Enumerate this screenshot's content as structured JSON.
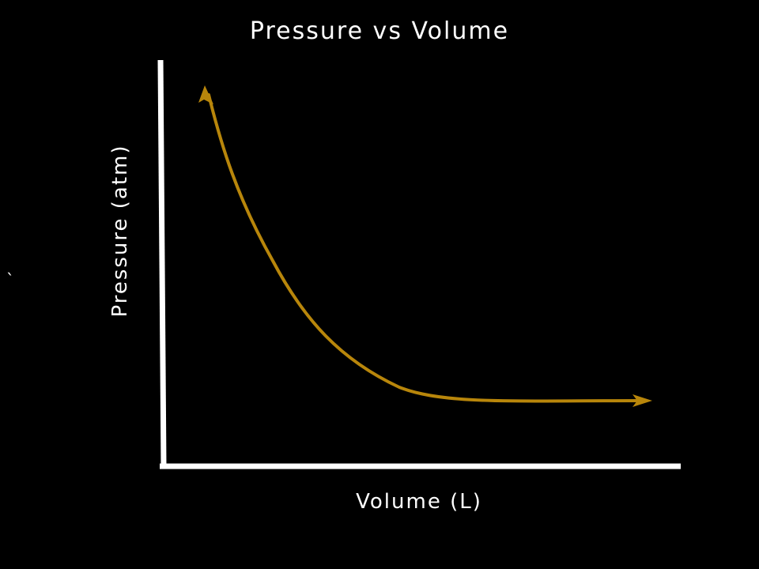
{
  "chart_data": {
    "type": "line",
    "title": "Pressure vs Volume",
    "xlabel": "Volume (L)",
    "ylabel": "Pressure (atm)",
    "grid": false,
    "legend": "none",
    "series": [
      {
        "color": "#b8860b",
        "shape": "inverse-curve",
        "arrows": "both-ends"
      }
    ]
  },
  "stray_mark": "`",
  "colors": {
    "background": "#000000",
    "axes": "#ffffff",
    "curve": "#b8860b",
    "text": "#ffffff"
  }
}
